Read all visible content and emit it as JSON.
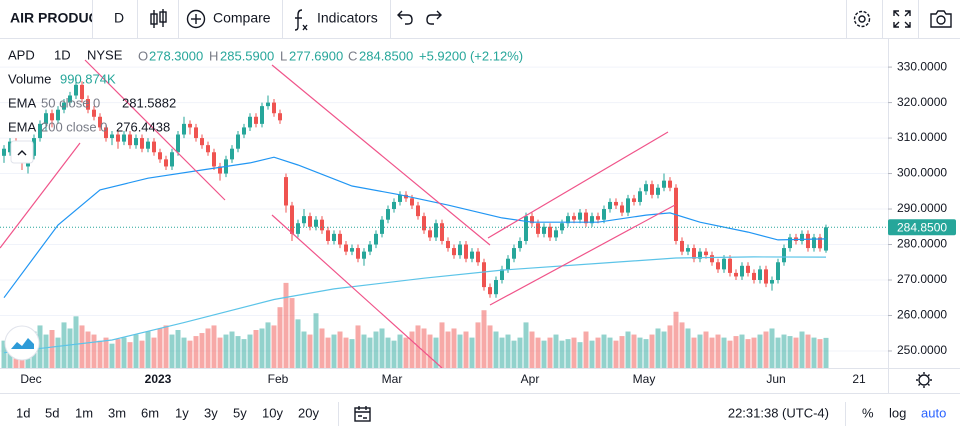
{
  "toolbar": {
    "symbol": "AIR PRODUC",
    "interval": "D",
    "compare": "Compare",
    "indicators": "Indicators"
  },
  "legend": {
    "symbol": "APD",
    "interval": "1D",
    "exchange": "NYSE",
    "o_label": "O",
    "open": "278.3000",
    "h_label": "H",
    "high": "285.5900",
    "l_label": "L",
    "low": "277.6900",
    "c_label": "C",
    "close": "284.8500",
    "change": "+5.9200 (+2.12%)",
    "volume_label": "Volume",
    "volume": "990.874K",
    "ema50": {
      "name": "EMA",
      "params": "50 close 0",
      "value": "281.5882"
    },
    "ema200": {
      "name": "EMA",
      "params": "200 close 0",
      "value": "276.4438"
    }
  },
  "chart_data": {
    "type": "candlestick",
    "ylim": [
      245.2,
      338.2
    ],
    "yticks": [
      {
        "value": 250,
        "label": "250.0000"
      },
      {
        "value": 260,
        "label": "260.0000"
      },
      {
        "value": 270,
        "label": "270.0000"
      },
      {
        "value": 280,
        "label": "280.0000"
      },
      {
        "value": 290,
        "label": "290.0000"
      },
      {
        "value": 300,
        "label": "300.0000"
      },
      {
        "value": 310,
        "label": "310.0000"
      },
      {
        "value": 320,
        "label": "320.0000"
      },
      {
        "value": 330,
        "label": "330.0000"
      }
    ],
    "grid": true,
    "x_labels": [
      "Dec",
      "2023",
      "Feb",
      "Mar",
      "Apr",
      "May",
      "Jun",
      "21"
    ],
    "up_color": "#26a69a",
    "down_color": "#ef5350",
    "ohlc": [
      [
        305,
        308,
        303,
        307
      ],
      [
        306,
        310,
        305,
        309
      ],
      [
        309,
        310,
        304,
        306
      ],
      [
        306,
        307,
        301,
        303
      ],
      [
        302,
        306,
        300,
        305
      ],
      [
        305,
        311,
        304,
        310
      ],
      [
        310,
        315,
        309,
        314
      ],
      [
        314,
        318,
        312,
        317
      ],
      [
        317,
        318,
        313,
        315
      ],
      [
        315,
        319,
        314,
        318
      ],
      [
        318,
        321,
        317,
        320
      ],
      [
        320,
        323,
        319,
        322
      ],
      [
        322,
        327,
        321,
        325
      ],
      [
        325,
        326,
        320,
        321
      ],
      [
        321,
        322,
        317,
        318
      ],
      [
        318,
        319,
        315,
        316
      ],
      [
        316,
        317,
        312,
        313
      ],
      [
        313,
        314,
        309,
        310
      ],
      [
        310,
        312,
        308,
        311
      ],
      [
        311,
        312,
        307,
        309
      ],
      [
        309,
        312,
        308,
        311
      ],
      [
        311,
        312,
        307,
        308
      ],
      [
        308,
        311,
        307,
        310
      ],
      [
        310,
        311,
        306,
        307
      ],
      [
        307,
        310,
        306,
        309
      ],
      [
        309,
        310,
        305,
        306
      ],
      [
        306,
        307,
        303,
        304
      ],
      [
        304,
        305,
        301,
        302
      ],
      [
        302,
        307,
        301,
        306
      ],
      [
        306,
        312,
        305,
        311
      ],
      [
        311,
        316,
        310,
        314
      ],
      [
        314,
        315,
        311,
        313
      ],
      [
        313,
        314,
        309,
        310
      ],
      [
        310,
        311,
        307,
        308
      ],
      [
        308,
        309,
        305,
        306
      ],
      [
        306,
        307,
        301,
        302
      ],
      [
        302,
        303,
        298,
        300
      ],
      [
        300,
        305,
        299,
        304
      ],
      [
        304,
        308,
        303,
        307
      ],
      [
        307,
        312,
        306,
        311
      ],
      [
        311,
        314,
        310,
        313
      ],
      [
        313,
        317,
        312,
        316
      ],
      [
        316,
        317,
        313,
        314
      ],
      [
        314,
        320,
        313,
        319
      ],
      [
        319,
        322,
        318,
        320
      ],
      [
        320,
        321,
        316,
        317
      ],
      [
        317,
        318,
        314,
        315
      ],
      [
        299,
        300,
        289,
        291
      ],
      [
        291,
        292,
        281,
        283
      ],
      [
        283,
        287,
        282,
        286
      ],
      [
        286,
        290,
        285,
        288
      ],
      [
        288,
        289,
        284,
        285
      ],
      [
        285,
        288,
        284,
        287
      ],
      [
        287,
        288,
        283,
        284
      ],
      [
        284,
        285,
        280,
        281
      ],
      [
        281,
        284,
        280,
        283
      ],
      [
        283,
        284,
        279,
        280
      ],
      [
        280,
        281,
        277,
        278
      ],
      [
        278,
        280,
        277,
        279
      ],
      [
        279,
        280,
        275,
        276
      ],
      [
        276,
        279,
        274,
        278
      ],
      [
        278,
        281,
        277,
        280
      ],
      [
        280,
        284,
        279,
        283
      ],
      [
        283,
        288,
        282,
        287
      ],
      [
        287,
        291,
        286,
        290
      ],
      [
        290,
        293,
        289,
        292
      ],
      [
        292,
        295,
        291,
        294
      ],
      [
        294,
        295,
        292,
        293
      ],
      [
        293,
        294,
        290,
        291
      ],
      [
        291,
        292,
        287,
        288
      ],
      [
        288,
        289,
        283,
        284
      ],
      [
        284,
        285,
        281,
        282
      ],
      [
        282,
        287,
        281,
        286
      ],
      [
        286,
        287,
        280,
        281
      ],
      [
        281,
        282,
        278,
        279
      ],
      [
        279,
        280,
        276,
        277
      ],
      [
        277,
        281,
        276,
        280
      ],
      [
        280,
        281,
        275,
        276
      ],
      [
        276,
        279,
        275,
        278
      ],
      [
        278,
        279,
        274,
        275
      ],
      [
        275,
        276,
        267,
        268
      ],
      [
        268,
        269,
        265,
        266
      ],
      [
        266,
        271,
        265,
        270
      ],
      [
        270,
        274,
        269,
        273
      ],
      [
        273,
        277,
        272,
        276
      ],
      [
        276,
        280,
        275,
        279
      ],
      [
        279,
        282,
        278,
        281
      ],
      [
        281,
        289,
        280,
        288
      ],
      [
        288,
        289,
        285,
        286
      ],
      [
        286,
        287,
        282,
        283
      ],
      [
        283,
        286,
        282,
        285
      ],
      [
        285,
        286,
        281,
        282
      ],
      [
        282,
        285,
        281,
        284
      ],
      [
        284,
        287,
        283,
        286
      ],
      [
        286,
        289,
        285,
        288
      ],
      [
        288,
        289,
        286,
        287
      ],
      [
        287,
        290,
        286,
        289
      ],
      [
        289,
        290,
        285,
        286
      ],
      [
        286,
        289,
        285,
        288
      ],
      [
        288,
        289,
        286,
        287
      ],
      [
        287,
        291,
        286,
        290
      ],
      [
        290,
        293,
        289,
        292
      ],
      [
        292,
        293,
        290,
        291
      ],
      [
        291,
        292,
        288,
        289
      ],
      [
        289,
        294,
        288,
        293
      ],
      [
        293,
        294,
        291,
        292
      ],
      [
        292,
        296,
        291,
        295
      ],
      [
        295,
        298,
        294,
        297
      ],
      [
        297,
        298,
        293,
        294
      ],
      [
        294,
        297,
        293,
        296
      ],
      [
        296,
        300,
        295,
        298
      ],
      [
        298,
        299,
        295,
        296
      ],
      [
        296,
        297,
        280,
        281
      ],
      [
        281,
        282,
        277,
        278
      ],
      [
        278,
        280,
        277,
        279
      ],
      [
        279,
        280,
        275,
        276
      ],
      [
        276,
        279,
        275,
        278
      ],
      [
        278,
        279,
        276,
        277
      ],
      [
        277,
        278,
        274,
        275
      ],
      [
        275,
        276,
        272,
        273
      ],
      [
        273,
        277,
        272,
        276
      ],
      [
        276,
        277,
        271,
        272
      ],
      [
        272,
        273,
        270,
        271
      ],
      [
        271,
        275,
        270,
        274
      ],
      [
        274,
        275,
        271,
        272
      ],
      [
        272,
        273,
        269,
        270
      ],
      [
        270,
        274,
        269,
        273
      ],
      [
        273,
        274,
        268,
        269
      ],
      [
        269,
        271,
        267,
        270
      ],
      [
        270,
        276,
        269,
        275
      ],
      [
        275,
        280,
        274,
        279
      ],
      [
        279,
        283,
        278,
        282
      ],
      [
        282,
        283,
        280,
        281
      ],
      [
        281,
        284,
        280,
        283
      ],
      [
        283,
        284,
        278,
        279
      ],
      [
        279,
        283,
        278,
        282
      ],
      [
        282,
        283,
        278,
        278.93
      ],
      [
        278.3,
        285.59,
        277.69,
        284.85
      ]
    ],
    "volume": [
      900,
      1100,
      950,
      1300,
      1000,
      1200,
      1400,
      1100,
      1250,
      1000,
      1500,
      1300,
      1700,
      1400,
      1200,
      1100,
      900,
      1000,
      800,
      950,
      1000,
      850,
      1100,
      900,
      1200,
      1000,
      1300,
      1400,
      1100,
      1250,
      1000,
      900,
      1050,
      1150,
      1300,
      1400,
      1000,
      1100,
      1200,
      1050,
      950,
      1100,
      1250,
      1300,
      1500,
      1400,
      2000,
      2800,
      2300,
      1600,
      1200,
      1100,
      1800,
      1300,
      1000,
      1100,
      1200,
      1000,
      950,
      1400,
      1100,
      1000,
      1200,
      1300,
      1000,
      900,
      1100,
      1000,
      1200,
      1400,
      1300,
      1100,
      1000,
      1500,
      1200,
      1300,
      1100,
      1200,
      1000,
      1500,
      1900,
      1400,
      1200,
      1000,
      1100,
      900,
      1000,
      1500,
      1200,
      1000,
      900,
      1000,
      1100,
      900,
      950,
      1000,
      850,
      1200,
      900,
      1000,
      1100,
      1000,
      900,
      1050,
      1200,
      1100,
      1000,
      950,
      1100,
      1300,
      1200,
      1400,
      1850,
      1500,
      1300,
      1000,
      1100,
      1200,
      1000,
      1100,
      1000,
      900,
      1050,
      1100,
      950,
      1000,
      1100,
      1200,
      1300,
      1000,
      1100,
      1050,
      1000,
      1200,
      1100,
      1000,
      950,
      990.874
    ],
    "ema50": {
      "color": "#2196f3",
      "x": [
        0,
        9,
        16,
        24,
        33,
        41,
        45,
        49,
        58,
        66,
        74,
        83,
        88,
        99,
        107,
        111,
        116,
        124,
        129,
        137
      ],
      "values": [
        265,
        285.5,
        295.4,
        298.7,
        301,
        303,
        304.6,
        302.4,
        296.5,
        294,
        291.1,
        287.5,
        286.3,
        286.3,
        288.3,
        288.9,
        286.3,
        283.5,
        281.3,
        281.59
      ]
    },
    "ema200": {
      "color": "#5cc4e8",
      "x": [
        0,
        18,
        30,
        45,
        55,
        70,
        83,
        100,
        112,
        125,
        137
      ],
      "values": [
        249.5,
        253.1,
        258,
        264.5,
        267.5,
        270.5,
        272.8,
        274.8,
        276.2,
        276.5,
        276.44
      ]
    },
    "price_tag": "284.8500"
  },
  "ranges": [
    "1d",
    "5d",
    "1m",
    "3m",
    "6m",
    "1y",
    "3y",
    "5y",
    "10y",
    "20y"
  ],
  "time": "22:31:38 (UTC-4)",
  "scale_options": [
    "%",
    "log",
    "auto"
  ]
}
